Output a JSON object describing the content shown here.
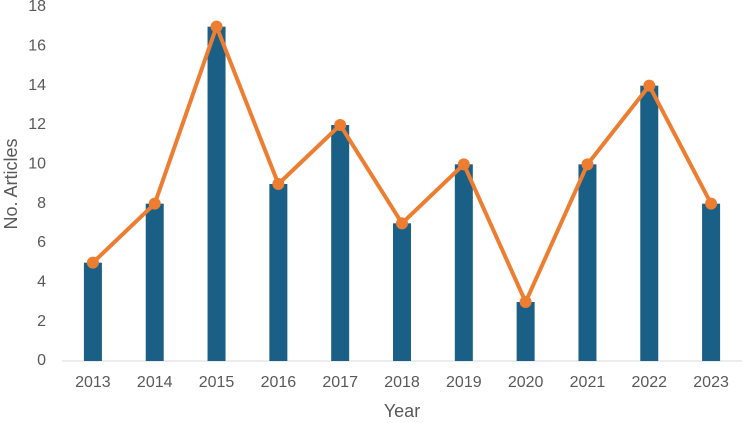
{
  "chart_data": {
    "type": "combo",
    "x_label": "Year",
    "y_label": "No. Articles",
    "categories": [
      "2013",
      "2014",
      "2015",
      "2016",
      "2017",
      "2018",
      "2019",
      "2020",
      "2021",
      "2022",
      "2023"
    ],
    "series": [
      {
        "type": "bar",
        "color": "#1a5f85",
        "values": [
          5,
          8,
          17,
          9,
          12,
          7,
          10,
          3,
          10,
          14,
          8
        ]
      },
      {
        "type": "line",
        "color": "#ed7d31",
        "values": [
          5,
          8,
          17,
          9,
          12,
          7,
          10,
          3,
          10,
          14,
          8
        ]
      }
    ],
    "ylim": [
      0,
      18
    ],
    "yticks": [
      0,
      2,
      4,
      6,
      8,
      10,
      12,
      14,
      16,
      18
    ],
    "grid": false
  }
}
